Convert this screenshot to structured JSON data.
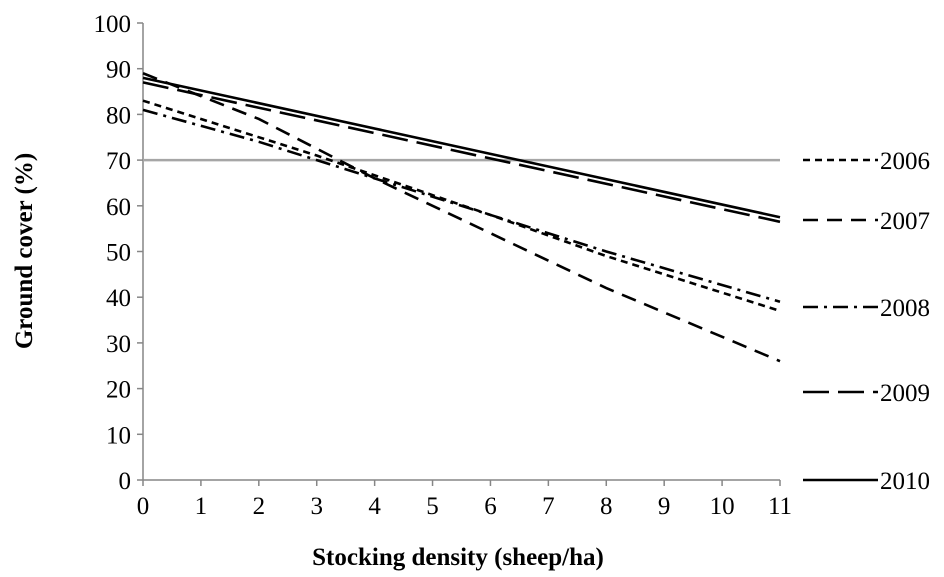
{
  "chart_data": {
    "type": "line",
    "title": "",
    "xlabel": "Stocking density (sheep/ha)",
    "ylabel": "Ground cover (%)",
    "xlim": [
      0,
      11
    ],
    "ylim": [
      0,
      100
    ],
    "x_ticks": [
      "0",
      "1",
      "2",
      "3",
      "4",
      "5",
      "6",
      "7",
      "8",
      "9",
      "10",
      "11"
    ],
    "y_ticks": [
      "0",
      "10",
      "20",
      "30",
      "40",
      "50",
      "60",
      "70",
      "80",
      "90",
      "100"
    ],
    "grid": false,
    "legend_position": "right",
    "reference_line": {
      "y": 70,
      "color": "#a6a6a6"
    },
    "series": [
      {
        "name": "2006",
        "dash": "short-dash",
        "points": [
          [
            0,
            83
          ],
          [
            3,
            71
          ],
          [
            6,
            58
          ],
          [
            8,
            49
          ],
          [
            11,
            37
          ]
        ]
      },
      {
        "name": "2007",
        "dash": "dash",
        "points": [
          [
            0,
            89
          ],
          [
            2,
            79
          ],
          [
            4,
            66
          ],
          [
            6,
            54
          ],
          [
            8,
            42
          ],
          [
            11,
            26
          ]
        ]
      },
      {
        "name": "2008",
        "dash": "dash-dot",
        "points": [
          [
            0,
            81
          ],
          [
            2,
            74
          ],
          [
            3,
            70
          ],
          [
            6,
            58
          ],
          [
            8,
            50
          ],
          [
            11,
            39
          ]
        ]
      },
      {
        "name": "2009",
        "dash": "long-dash",
        "points": [
          [
            0,
            87
          ],
          [
            11,
            56.5
          ]
        ]
      },
      {
        "name": "2010",
        "dash": "solid",
        "points": [
          [
            0,
            88
          ],
          [
            11,
            57.5
          ]
        ]
      }
    ]
  }
}
